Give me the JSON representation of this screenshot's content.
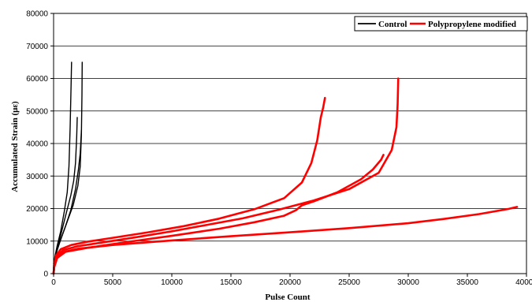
{
  "chart_data": {
    "type": "line",
    "xlabel": "Pulse Count",
    "ylabel": "Accumulated Strain (με)",
    "xlim": [
      0,
      40000
    ],
    "ylim": [
      0,
      80000
    ],
    "x_ticks": [
      0,
      5000,
      10000,
      15000,
      20000,
      25000,
      30000,
      35000,
      40000
    ],
    "y_ticks": [
      0,
      10000,
      20000,
      30000,
      40000,
      50000,
      60000,
      70000,
      80000
    ],
    "grid": "horizontal",
    "legend_position": "top-right",
    "legend": [
      {
        "label": "Control",
        "color": "#000000"
      },
      {
        "label": "Polypropylene modified",
        "color": "#ff0000"
      }
    ],
    "series": [
      {
        "group": "Control",
        "color": "#000000",
        "points": [
          [
            0,
            1500
          ],
          [
            100,
            5000
          ],
          [
            300,
            8500
          ],
          [
            600,
            13000
          ],
          [
            900,
            19000
          ],
          [
            1150,
            25000
          ],
          [
            1300,
            33000
          ],
          [
            1400,
            45000
          ],
          [
            1480,
            58000
          ],
          [
            1520,
            65000
          ]
        ]
      },
      {
        "group": "Control",
        "color": "#000000",
        "points": [
          [
            0,
            2000
          ],
          [
            150,
            5500
          ],
          [
            400,
            9000
          ],
          [
            750,
            14000
          ],
          [
            1100,
            19000
          ],
          [
            1450,
            24000
          ],
          [
            1700,
            28500
          ],
          [
            1850,
            34000
          ],
          [
            1950,
            42000
          ],
          [
            2000,
            48000
          ]
        ]
      },
      {
        "group": "Control",
        "color": "#000000",
        "points": [
          [
            0,
            2500
          ],
          [
            200,
            6000
          ],
          [
            550,
            10000
          ],
          [
            1000,
            14500
          ],
          [
            1450,
            19500
          ],
          [
            1850,
            26000
          ],
          [
            2100,
            32000
          ],
          [
            2250,
            37000
          ],
          [
            2350,
            44000
          ]
        ]
      },
      {
        "group": "Control",
        "color": "#000000",
        "points": [
          [
            0,
            3000
          ],
          [
            250,
            7000
          ],
          [
            650,
            11000
          ],
          [
            1150,
            16000
          ],
          [
            1650,
            21000
          ],
          [
            2050,
            27000
          ],
          [
            2250,
            33000
          ],
          [
            2350,
            43000
          ],
          [
            2400,
            55000
          ],
          [
            2420,
            65000
          ]
        ]
      },
      {
        "group": "Polypropylene modified",
        "color": "#ff0000",
        "points": [
          [
            0,
            0
          ],
          [
            50,
            2500
          ],
          [
            200,
            5500
          ],
          [
            600,
            7500
          ],
          [
            1500,
            8800
          ],
          [
            3000,
            9900
          ],
          [
            5000,
            11000
          ],
          [
            8000,
            12700
          ],
          [
            11000,
            14600
          ],
          [
            14000,
            16900
          ],
          [
            17000,
            19800
          ],
          [
            19500,
            23200
          ],
          [
            21000,
            28000
          ],
          [
            21800,
            34000
          ],
          [
            22300,
            41000
          ],
          [
            22600,
            48000
          ],
          [
            22800,
            51000
          ],
          [
            22950,
            54000
          ]
        ]
      },
      {
        "group": "Polypropylene modified",
        "color": "#ff0000",
        "points": [
          [
            0,
            0
          ],
          [
            50,
            2500
          ],
          [
            300,
            5500
          ],
          [
            800,
            7200
          ],
          [
            2000,
            8400
          ],
          [
            4000,
            9500
          ],
          [
            7000,
            11200
          ],
          [
            10000,
            13000
          ],
          [
            13000,
            15000
          ],
          [
            16000,
            17000
          ],
          [
            19000,
            19600
          ],
          [
            22000,
            22500
          ],
          [
            25000,
            26000
          ],
          [
            27500,
            31000
          ],
          [
            28600,
            38000
          ],
          [
            29000,
            45000
          ],
          [
            29100,
            52000
          ],
          [
            29150,
            60000
          ]
        ]
      },
      {
        "group": "Polypropylene modified",
        "color": "#ff0000",
        "points": [
          [
            0,
            0
          ],
          [
            50,
            2500
          ],
          [
            250,
            5000
          ],
          [
            700,
            6500
          ],
          [
            2000,
            7600
          ],
          [
            5000,
            8800
          ],
          [
            10000,
            10200
          ],
          [
            15000,
            11500
          ],
          [
            20000,
            12700
          ],
          [
            25000,
            14000
          ],
          [
            30000,
            15500
          ],
          [
            33000,
            16800
          ],
          [
            36000,
            18300
          ],
          [
            38500,
            19900
          ],
          [
            39200,
            20500
          ]
        ]
      },
      {
        "group": "Polypropylene modified",
        "color": "#ff0000",
        "points": [
          [
            0,
            0
          ],
          [
            50,
            2000
          ],
          [
            300,
            4800
          ],
          [
            1000,
            6700
          ],
          [
            3000,
            8000
          ],
          [
            6000,
            9600
          ],
          [
            10000,
            11600
          ],
          [
            14000,
            13800
          ],
          [
            17000,
            15800
          ],
          [
            19500,
            17800
          ],
          [
            20500,
            19500
          ],
          [
            21000,
            21000
          ],
          [
            22000,
            22200
          ],
          [
            24000,
            25000
          ],
          [
            26000,
            29000
          ],
          [
            27000,
            32000
          ],
          [
            27700,
            35000
          ],
          [
            27900,
            36500
          ]
        ]
      }
    ]
  }
}
